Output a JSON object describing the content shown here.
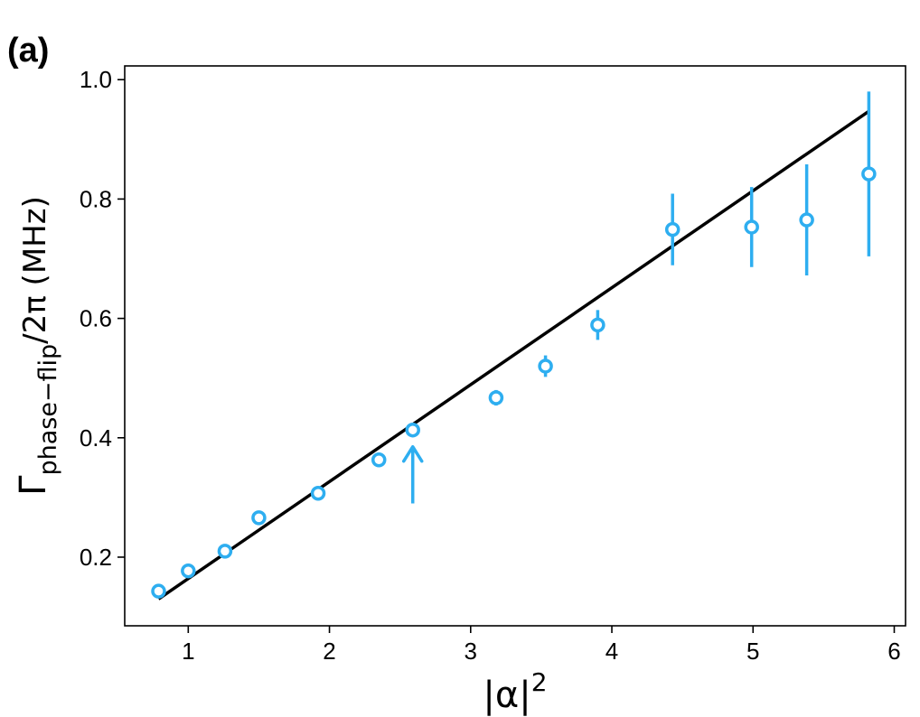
{
  "panel_label": "(a)",
  "chart_data": {
    "type": "scatter",
    "xlabel": "|α|²",
    "ylabel": "Γphase−flip/2π (MHz)",
    "xlabel_parts": {
      "base": "|α|",
      "sup": "2"
    },
    "ylabel_parts": {
      "base": "Γ",
      "sub": "phase−flip",
      "rest": "/2π (MHz)"
    },
    "xlim": [
      0.55,
      6.08
    ],
    "ylim": [
      0.085,
      1.023
    ],
    "xticks": [
      1,
      2,
      3,
      4,
      5,
      6
    ],
    "yticks": [
      0.2,
      0.4,
      0.6,
      0.8,
      1.0
    ],
    "xtick_labels": [
      "1",
      "2",
      "3",
      "4",
      "5",
      "6"
    ],
    "ytick_labels": [
      "0.2",
      "0.4",
      "0.6",
      "0.8",
      "1.0"
    ],
    "grid": false,
    "series": [
      {
        "kind": "markers_with_errorbars",
        "color": "#2eaef0",
        "points": [
          {
            "x": 0.79,
            "y": 0.143,
            "err": 0.005
          },
          {
            "x": 1.0,
            "y": 0.177,
            "err": 0.005
          },
          {
            "x": 1.26,
            "y": 0.21,
            "err": 0.006
          },
          {
            "x": 1.5,
            "y": 0.266,
            "err": 0.007
          },
          {
            "x": 1.92,
            "y": 0.307,
            "err": 0.007
          },
          {
            "x": 2.35,
            "y": 0.363,
            "err": 0.008
          },
          {
            "x": 2.59,
            "y": 0.413,
            "err": 0.009
          },
          {
            "x": 3.18,
            "y": 0.467,
            "err": 0.013
          },
          {
            "x": 3.53,
            "y": 0.52,
            "err": 0.018
          },
          {
            "x": 3.9,
            "y": 0.589,
            "err": 0.025
          },
          {
            "x": 4.43,
            "y": 0.749,
            "err": 0.06
          },
          {
            "x": 4.99,
            "y": 0.753,
            "err": 0.067
          },
          {
            "x": 5.38,
            "y": 0.765,
            "err": 0.093
          },
          {
            "x": 5.82,
            "y": 0.842,
            "err": 0.138
          }
        ]
      },
      {
        "kind": "line",
        "color": "#000000",
        "x": [
          0.79,
          5.82
        ],
        "y": [
          0.13,
          0.947
        ]
      }
    ],
    "annotations": [
      {
        "type": "arrow",
        "x": 2.59,
        "y_tail": 0.29,
        "y_head": 0.385,
        "color": "#2eaef0"
      }
    ]
  }
}
